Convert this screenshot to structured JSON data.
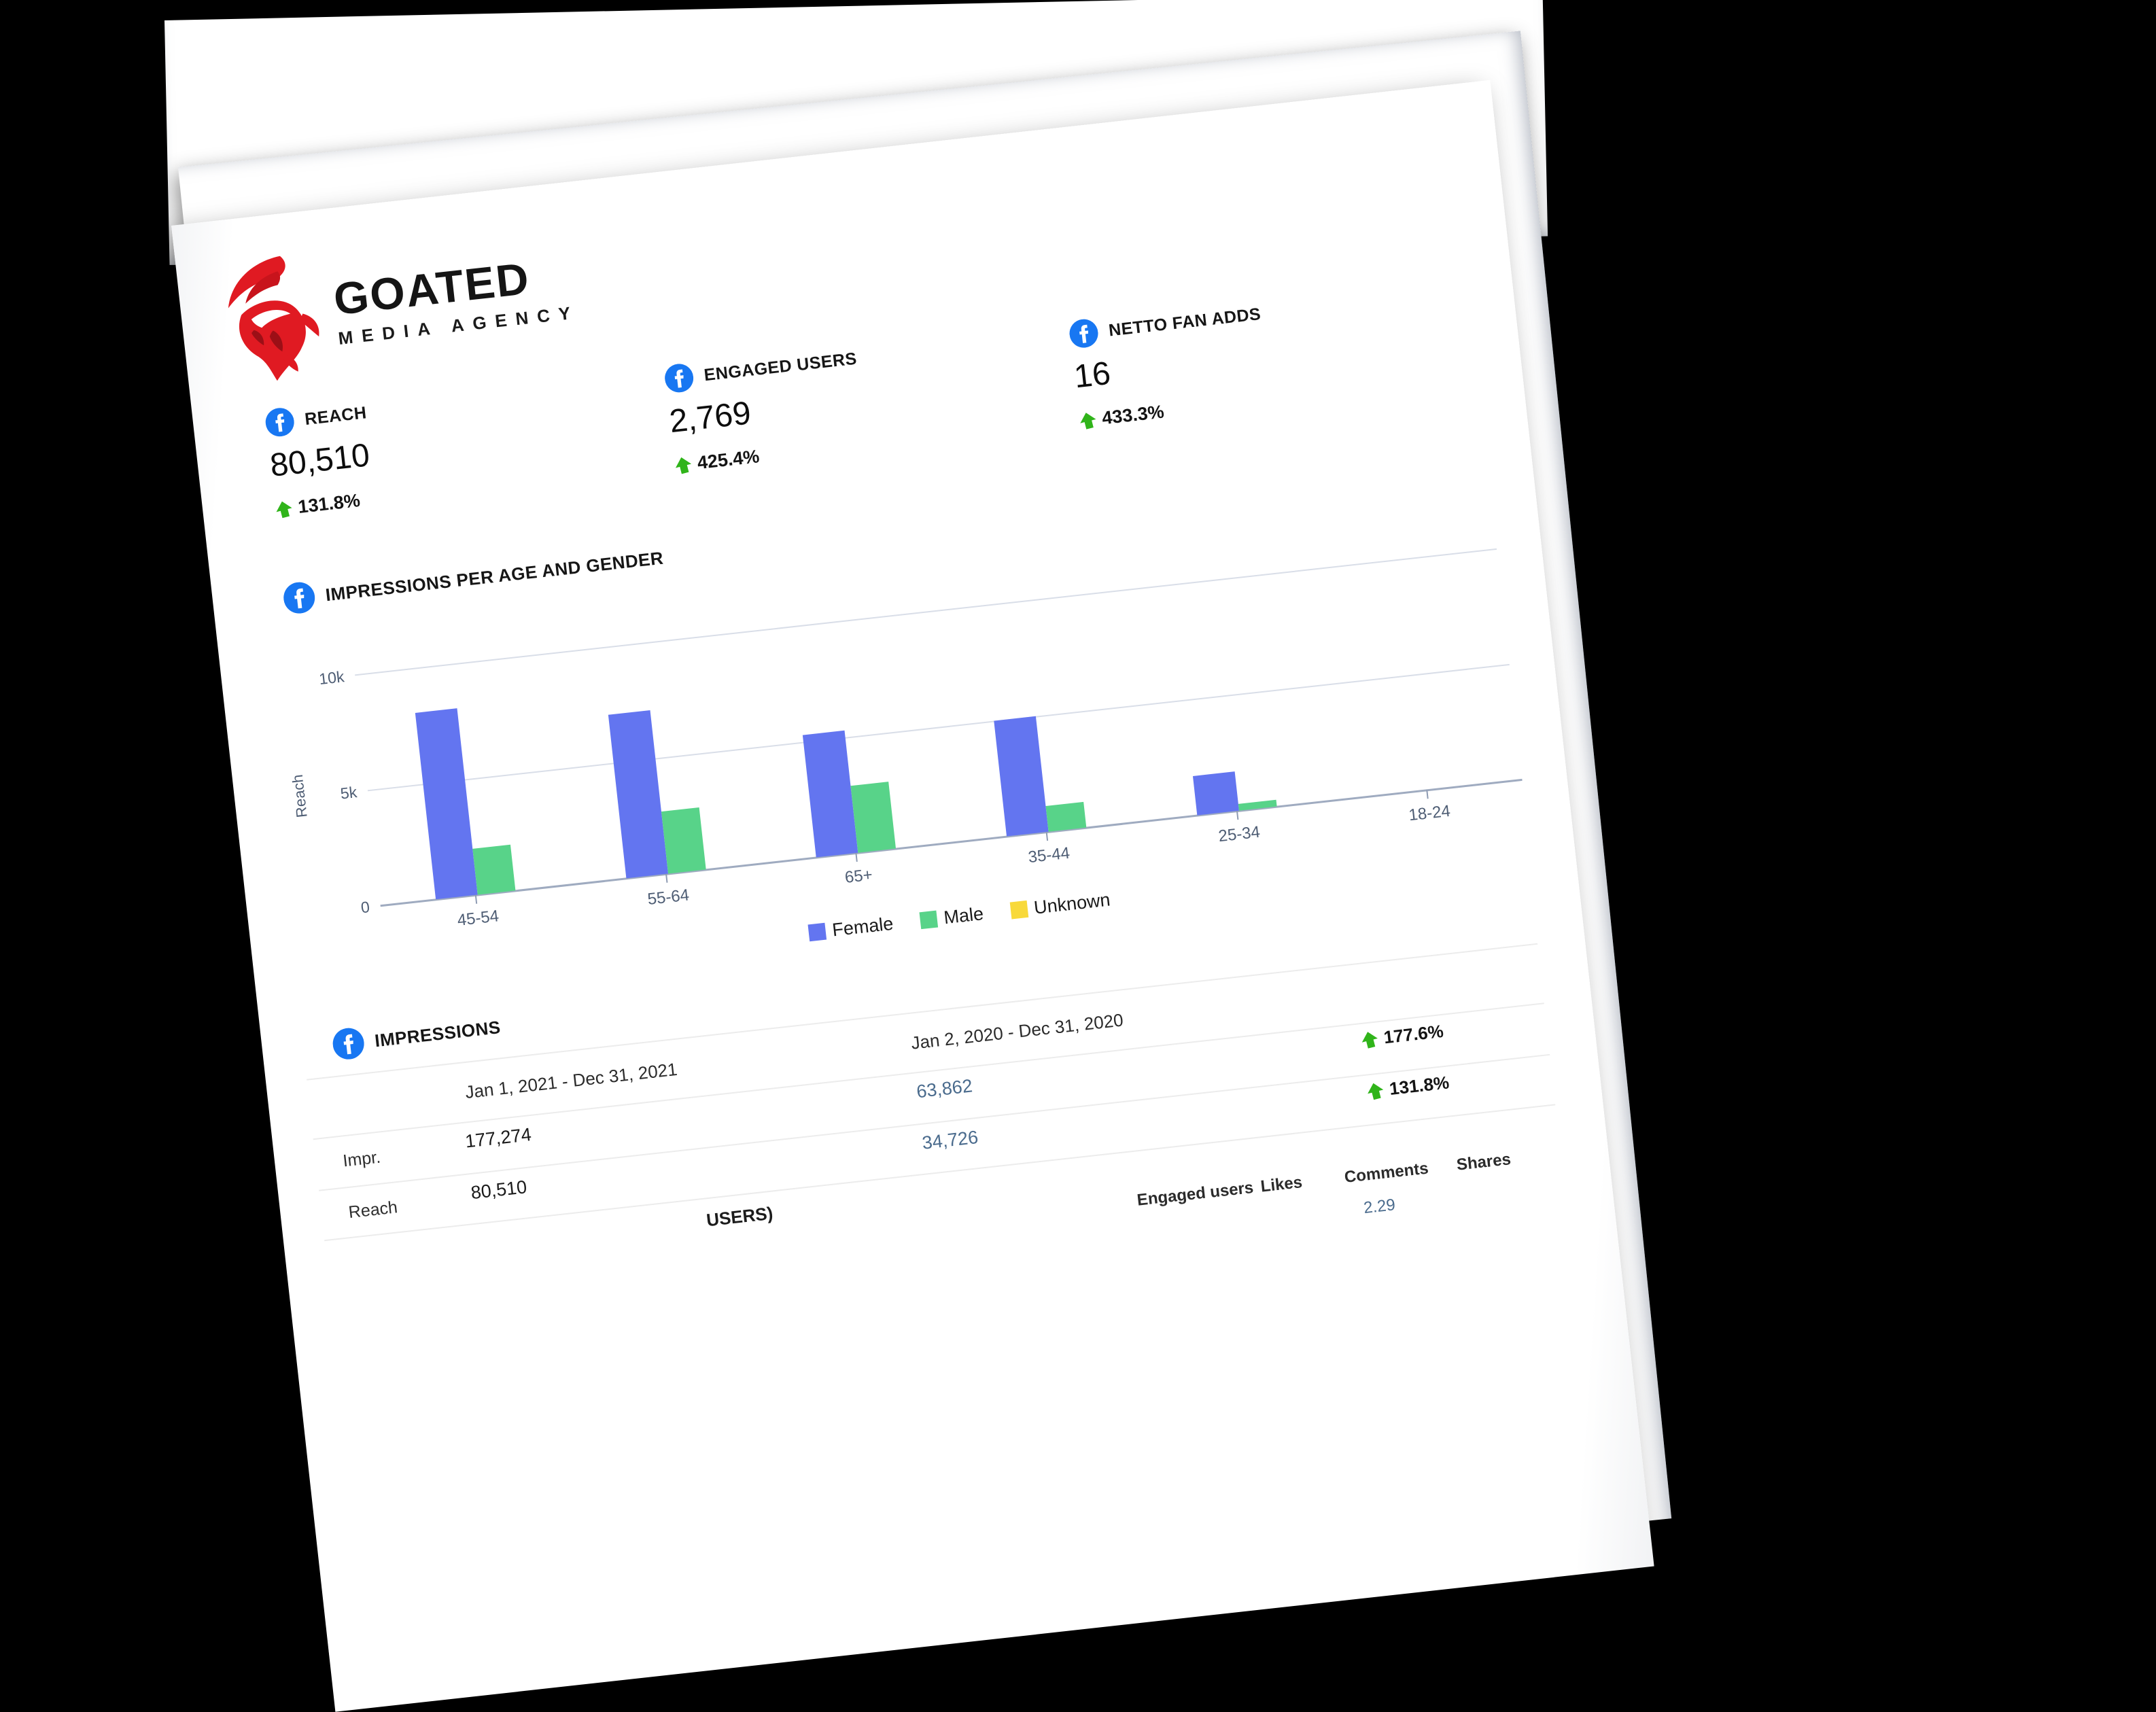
{
  "window": {
    "background": "#000000"
  },
  "logo": {
    "name": "GOATED",
    "tagline": "MEDIA AGENCY",
    "icon": "goat-icon"
  },
  "metrics": [
    {
      "icon": "facebook-icon",
      "label": "REACH",
      "value": "80,510",
      "change": "131.8%",
      "direction": "up"
    },
    {
      "icon": "facebook-icon",
      "label": "ENGAGED USERS",
      "value": "2,769",
      "change": "425.4%",
      "direction": "up"
    },
    {
      "icon": "facebook-icon",
      "label": "NETTO FAN ADDS",
      "value": "16",
      "change": "433.3%",
      "direction": "up"
    }
  ],
  "age_gender_section": {
    "icon": "facebook-icon",
    "title": "IMPRESSIONS PER AGE AND GENDER"
  },
  "chart_data": {
    "type": "bar",
    "title": "IMPRESSIONS PER AGE AND GENDER",
    "categories": [
      "45-54",
      "55-64",
      "65+",
      "35-44",
      "25-34",
      "18-24"
    ],
    "series": [
      {
        "name": "Female",
        "color": "#6375f0",
        "values": [
          8100,
          7100,
          5300,
          5000,
          1700,
          0
        ]
      },
      {
        "name": "Male",
        "color": "#58d389",
        "values": [
          2000,
          2700,
          2900,
          1100,
          300,
          0
        ]
      },
      {
        "name": "Unknown",
        "color": "#f8d93a",
        "values": [
          0,
          0,
          0,
          0,
          0,
          0
        ]
      }
    ],
    "xlabel": "",
    "ylabel": "Reach",
    "yticks": [
      {
        "label": "10k",
        "value": 10000
      },
      {
        "label": "5k",
        "value": 5000
      },
      {
        "label": "0",
        "value": 0
      }
    ],
    "ylim": [
      0,
      10000
    ],
    "grid": true,
    "legend_position": "bottom"
  },
  "impressions_section": {
    "icon": "facebook-icon",
    "title": "IMPRESSIONS",
    "period_columns": [
      "Jan 1, 2021 - Dec 31, 2021",
      "Jan 2, 2020 - Dec 31, 2020"
    ],
    "rows": [
      {
        "label": "Impr.",
        "current": "177,274",
        "previous": "63,862",
        "change": "177.6%",
        "direction": "up"
      },
      {
        "label": "Reach",
        "current": "80,510",
        "previous": "34,726",
        "change": "131.8%",
        "direction": "up"
      }
    ]
  },
  "posts_section": {
    "heading_partial": "USERS)",
    "column_headers": [
      "Engaged users",
      "Likes",
      "Comments",
      "Shares"
    ],
    "visible_value": "2.29"
  },
  "colors": {
    "facebook_blue": "#1877f2",
    "positive_green": "#30b41a",
    "female_bar": "#6375f0",
    "male_bar": "#58d389",
    "unknown_bar": "#f8d93a",
    "comparison_value": "#4a6b8d",
    "axis_text": "#4e5d74",
    "logo_red": "#e01a22"
  }
}
